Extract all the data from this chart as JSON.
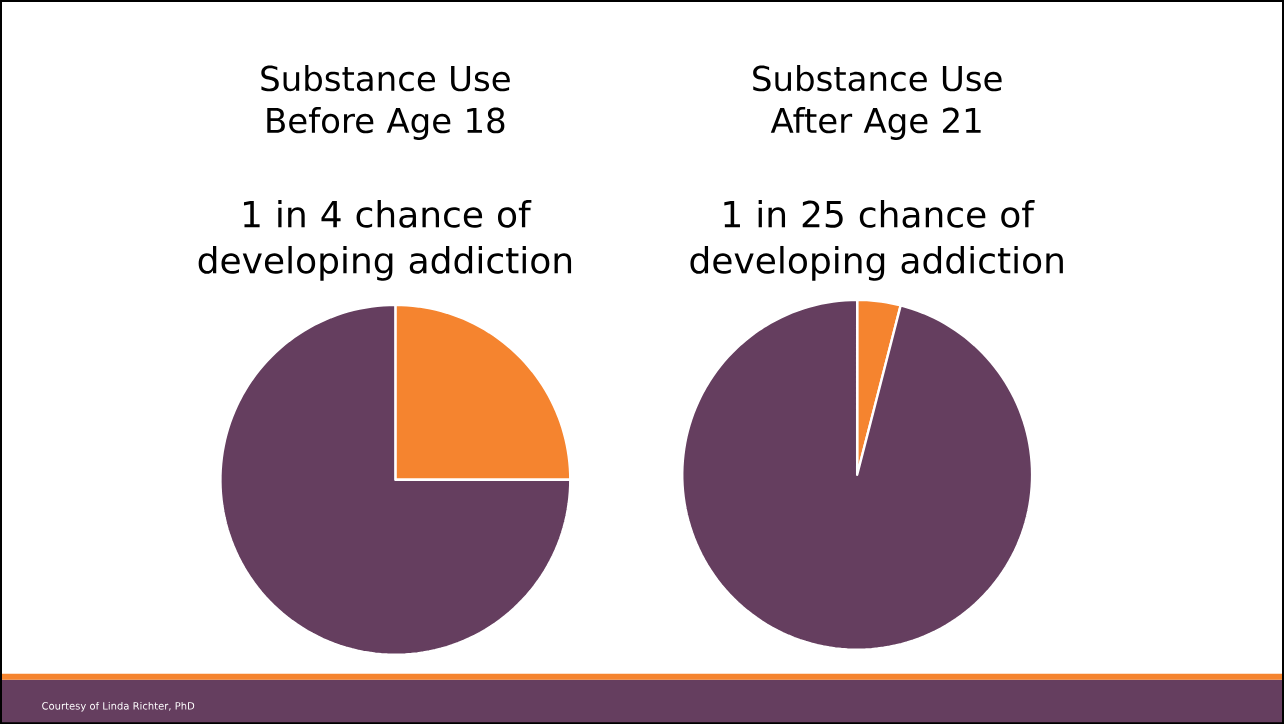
{
  "chart_data": [
    {
      "type": "pie",
      "title": "Substance Use Before Age 18",
      "subtitle": "1 in 4 chance of developing addiction",
      "categories": [
        null,
        null
      ],
      "values": [
        25,
        75
      ],
      "colors": [
        "#f5842f",
        "#653e5f"
      ]
    },
    {
      "type": "pie",
      "title": "Substance Use After Age 21",
      "subtitle": "1 in 25 chance of developing addiction",
      "categories": [
        null,
        null
      ],
      "values": [
        4,
        96
      ],
      "colors": [
        "#f5842f",
        "#653e5f"
      ],
      "annotations": [
        "Courtesy of Linda Richter, PhD"
      ]
    }
  ]
}
